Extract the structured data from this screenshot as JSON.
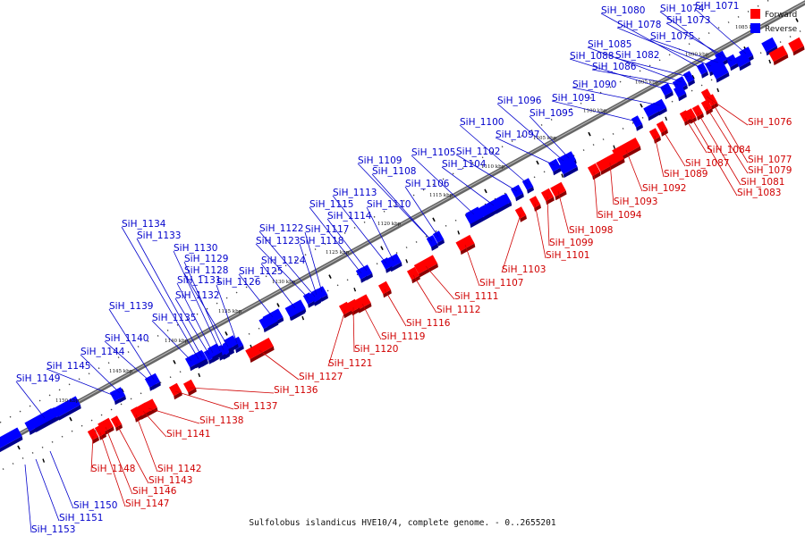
{
  "caption": "Sulfolobus islandicus HVE10/4, complete genome. - 0..2655201",
  "legend": [
    {
      "label": "Forward",
      "color": "#ff0000"
    },
    {
      "label": "Reverse",
      "color": "#0000ff"
    }
  ],
  "colors": {
    "forward": "#ff0000",
    "reverse": "#0000ff",
    "forward_label": "#d00000",
    "reverse_label": "#0000cc",
    "backbone": "#666666"
  },
  "kbp_markers": [
    "1085 kbp",
    "1090 kbp",
    "1095 kbp",
    "1100 kbp",
    "1105 kbp",
    "1110 kbp",
    "1115 kbp",
    "1120 kbp",
    "1125 kbp",
    "1130 kbp",
    "1135 kbp",
    "1140 kbp",
    "1145 kbp",
    "1150 kbp"
  ],
  "reverse_genes": [
    "SiH_1071",
    "SiH_1073",
    "SiH_1074",
    "SiH_1075",
    "SiH_1078",
    "SiH_1080",
    "SiH_1082",
    "SiH_1085",
    "SiH_1086",
    "SiH_1088",
    "SiH_1090",
    "SiH_1091",
    "SiH_1095",
    "SiH_1096",
    "SiH_1097",
    "SiH_1100",
    "SiH_1102",
    "SiH_1104",
    "SiH_1105",
    "SiH_1106",
    "SiH_1108",
    "SiH_1109",
    "SiH_1110",
    "SiH_1113",
    "SiH_1114",
    "SiH_1115",
    "SiH_1117",
    "SiH_1118",
    "SiH_1122",
    "SiH_1123",
    "SiH_1124",
    "SiH_1125",
    "SiH_1126",
    "SiH_1128",
    "SiH_1129",
    "SiH_1130",
    "SiH_1131",
    "SiH_1132",
    "SiH_1133",
    "SiH_1134",
    "SiH_1135",
    "SiH_1139",
    "SiH_1140",
    "SiH_1144",
    "SiH_1145",
    "SiH_1149",
    "SiH_1150",
    "SiH_1151",
    "SiH_1153"
  ],
  "forward_genes": [
    "SiH_1076",
    "SiH_1077",
    "SiH_1079",
    "SiH_1081",
    "SiH_1083",
    "SiH_1084",
    "SiH_1087",
    "SiH_1089",
    "SiH_1092",
    "SiH_1093",
    "SiH_1094",
    "SiH_1098",
    "SiH_1099",
    "SiH_1101",
    "SiH_1103",
    "SiH_1107",
    "SiH_1111",
    "SiH_1112",
    "SiH_1116",
    "SiH_1119",
    "SiH_1120",
    "SiH_1121",
    "SiH_1127",
    "SiH_1136",
    "SiH_1137",
    "SiH_1138",
    "SiH_1141",
    "SiH_1142",
    "SiH_1143",
    "SiH_1146",
    "SiH_1147",
    "SiH_1148"
  ]
}
